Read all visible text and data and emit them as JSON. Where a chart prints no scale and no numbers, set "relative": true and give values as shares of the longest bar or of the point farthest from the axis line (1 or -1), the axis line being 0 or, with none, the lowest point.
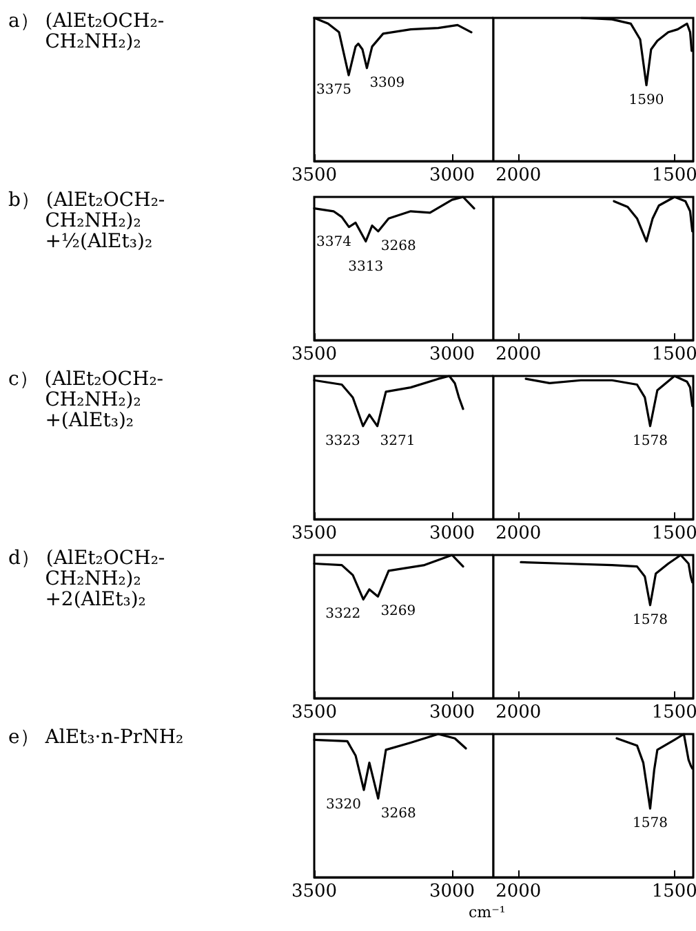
{
  "chart_data": [
    {
      "type": "other",
      "annotations": [
        "a） (AlEt₂OCH₂-\n      CH₂NH₂)₂",
        "b） (AlEt₂OCH₂-\n      CH₂NH₂)₂\n      +½(AlEt₃)₂",
        "c） (AlEt₂OCH₂-\n      CH₂NH₂)₂\n      +(AlEt₃)₂",
        "d） (AlEt₂OCH₂-\n      CH₂NH₂)₂\n      +2(AlEt₃)₂",
        "e） AlEt₃·n-PrNH₂"
      ]
    },
    {
      "type": "line",
      "relative": true,
      "color": "#000000",
      "xlim": [
        3500,
        2850
      ],
      "xticks": [
        3500,
        3000
      ],
      "x": [
        3500,
        3450,
        3410,
        3375,
        3350,
        3340,
        3325,
        3309,
        3290,
        3250,
        3150,
        3050,
        2980,
        2930
      ],
      "values": [
        1.0,
        0.96,
        0.9,
        0.6,
        0.8,
        0.82,
        0.78,
        0.65,
        0.8,
        0.89,
        0.92,
        0.93,
        0.95,
        0.9
      ],
      "annotations": [
        {
          "text": "3375",
          "x": 3375,
          "y": 0.6
        },
        {
          "text": "3309",
          "x": 3309,
          "y": 0.65
        }
      ]
    },
    {
      "type": "line",
      "relative": true,
      "color": "#000000",
      "xlim": [
        2080,
        1440
      ],
      "xticks": [
        2000,
        1500
      ],
      "x": [
        1798,
        1700,
        1640,
        1610,
        1590,
        1575,
        1555,
        1520,
        1490,
        1460,
        1450,
        1445
      ],
      "values": [
        1.0,
        0.99,
        0.96,
        0.85,
        0.53,
        0.78,
        0.84,
        0.9,
        0.92,
        0.96,
        0.9,
        0.77
      ],
      "annotations": [
        {
          "text": "1590",
          "x": 1590,
          "y": 0.53
        }
      ]
    },
    {
      "type": "line",
      "relative": true,
      "color": "#000000",
      "xlim": [
        3500,
        2850
      ],
      "xticks": [
        3500,
        3000
      ],
      "x": [
        3500,
        3430,
        3400,
        3374,
        3350,
        3313,
        3290,
        3268,
        3230,
        3150,
        3080,
        3000,
        2960,
        2920
      ],
      "values": [
        0.92,
        0.9,
        0.86,
        0.79,
        0.82,
        0.69,
        0.8,
        0.76,
        0.85,
        0.9,
        0.89,
        0.98,
        1.0,
        0.92
      ],
      "annotations": [
        {
          "text": "3374",
          "x": 3374,
          "y": 0.79
        },
        {
          "text": "3313",
          "x": 3313,
          "y": 0.69
        },
        {
          "text": "3268",
          "x": 3268,
          "y": 0.76
        }
      ]
    },
    {
      "type": "line",
      "relative": true,
      "color": "#000000",
      "xlim": [
        2080,
        1440
      ],
      "xticks": [
        2000,
        1500
      ],
      "x": [
        1694,
        1650,
        1620,
        1590,
        1570,
        1550,
        1500,
        1465,
        1450,
        1443
      ],
      "values": [
        0.97,
        0.93,
        0.85,
        0.69,
        0.85,
        0.94,
        1.0,
        0.97,
        0.9,
        0.76
      ]
    },
    {
      "type": "line",
      "relative": true,
      "color": "#000000",
      "xlim": [
        3500,
        2850
      ],
      "xticks": [
        3500,
        3000
      ],
      "x": [
        3500,
        3400,
        3360,
        3323,
        3300,
        3271,
        3240,
        3150,
        3050,
        3010,
        2990,
        2975,
        2960
      ],
      "values": [
        0.97,
        0.94,
        0.85,
        0.65,
        0.73,
        0.65,
        0.89,
        0.92,
        0.98,
        1.0,
        0.95,
        0.85,
        0.77
      ],
      "annotations": [
        {
          "text": "3323",
          "x": 3323,
          "y": 0.65
        },
        {
          "text": "3271",
          "x": 3271,
          "y": 0.65
        }
      ]
    },
    {
      "type": "line",
      "relative": true,
      "color": "#000000",
      "xlim": [
        2080,
        1440
      ],
      "xticks": [
        2000,
        1500
      ],
      "x": [
        1976,
        1900,
        1800,
        1700,
        1620,
        1595,
        1578,
        1555,
        1500,
        1460,
        1450,
        1443
      ],
      "values": [
        0.98,
        0.95,
        0.97,
        0.97,
        0.94,
        0.85,
        0.65,
        0.9,
        1.0,
        0.96,
        0.92,
        0.79
      ],
      "annotations": [
        {
          "text": "1578",
          "x": 1578,
          "y": 0.65
        }
      ]
    },
    {
      "type": "line",
      "relative": true,
      "color": "#000000",
      "xlim": [
        3500,
        2850
      ],
      "xticks": [
        3500,
        3000
      ],
      "x": [
        3500,
        3400,
        3360,
        3322,
        3300,
        3269,
        3230,
        3100,
        3000,
        2975,
        2960
      ],
      "values": [
        0.94,
        0.93,
        0.86,
        0.69,
        0.76,
        0.71,
        0.89,
        0.93,
        1.0,
        0.95,
        0.92
      ],
      "annotations": [
        {
          "text": "3322",
          "x": 3322,
          "y": 0.69
        },
        {
          "text": "3269",
          "x": 3269,
          "y": 0.71
        }
      ]
    },
    {
      "type": "line",
      "relative": true,
      "color": "#000000",
      "xlim": [
        2080,
        1440
      ],
      "xticks": [
        2000,
        1500
      ],
      "x": [
        1992,
        1850,
        1700,
        1620,
        1595,
        1578,
        1560,
        1520,
        1480,
        1455,
        1448,
        1443
      ],
      "values": [
        0.95,
        0.94,
        0.93,
        0.92,
        0.85,
        0.65,
        0.87,
        0.94,
        1.0,
        0.94,
        0.85,
        0.81
      ],
      "annotations": [
        {
          "text": "1578",
          "x": 1578,
          "y": 0.65
        }
      ]
    },
    {
      "type": "line",
      "relative": true,
      "color": "#000000",
      "xlim": [
        3500,
        2850
      ],
      "xticks": [
        3500,
        3000
      ],
      "x": [
        3500,
        3380,
        3350,
        3320,
        3300,
        3268,
        3240,
        3150,
        3050,
        2990,
        2950
      ],
      "values": [
        0.96,
        0.95,
        0.85,
        0.61,
        0.8,
        0.55,
        0.89,
        0.94,
        1.0,
        0.97,
        0.9
      ],
      "annotations": [
        {
          "text": "3320",
          "x": 3320,
          "y": 0.61
        },
        {
          "text": "3268",
          "x": 3268,
          "y": 0.55
        }
      ]
    },
    {
      "type": "line",
      "xlabel": "cm⁻¹",
      "relative": true,
      "color": "#000000",
      "xlim": [
        2080,
        1440
      ],
      "xticks": [
        2000,
        1500
      ],
      "x": [
        1685,
        1620,
        1600,
        1578,
        1565,
        1555,
        1500,
        1470,
        1455,
        1448,
        1443
      ],
      "values": [
        0.97,
        0.92,
        0.8,
        0.48,
        0.75,
        0.89,
        0.96,
        1.0,
        0.82,
        0.78,
        0.76
      ],
      "annotations": [
        {
          "text": "1578",
          "x": 1578,
          "y": 0.48
        }
      ]
    }
  ]
}
